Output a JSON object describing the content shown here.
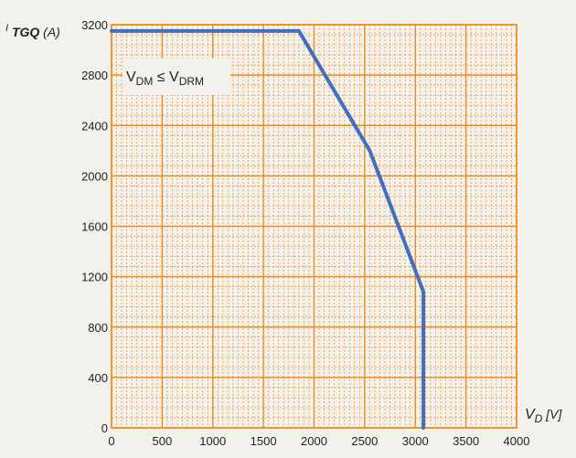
{
  "chart_data": {
    "type": "line",
    "title": "",
    "xlabel": "V",
    "xlabel_sub": "D",
    "xlabel_unit": "[V]",
    "ylabel_prefix": "I",
    "ylabel_sub": "TGQ",
    "ylabel_unit": "(A)",
    "xlim": [
      0,
      4000
    ],
    "ylim": [
      0,
      3200
    ],
    "x_ticks": [
      "0",
      "500",
      "1000",
      "1500",
      "2000",
      "2500",
      "3000",
      "3500",
      "4000"
    ],
    "y_ticks": [
      "0",
      "400",
      "800",
      "1200",
      "1600",
      "2000",
      "2400",
      "2800",
      "3200"
    ],
    "grid": true,
    "colors": {
      "grid": "#f08a1c",
      "line": "#3f6fc0",
      "background": "#f3f1ec"
    },
    "annotation": {
      "v1": "V",
      "v1_sub": "DM",
      "op": " ≤ ",
      "v2": "V",
      "v2_sub": "DRM"
    },
    "series": [
      {
        "x": [
          0,
          1850,
          2550,
          3080,
          3080
        ],
        "y": [
          3150,
          3150,
          2200,
          1080,
          0
        ]
      }
    ]
  }
}
